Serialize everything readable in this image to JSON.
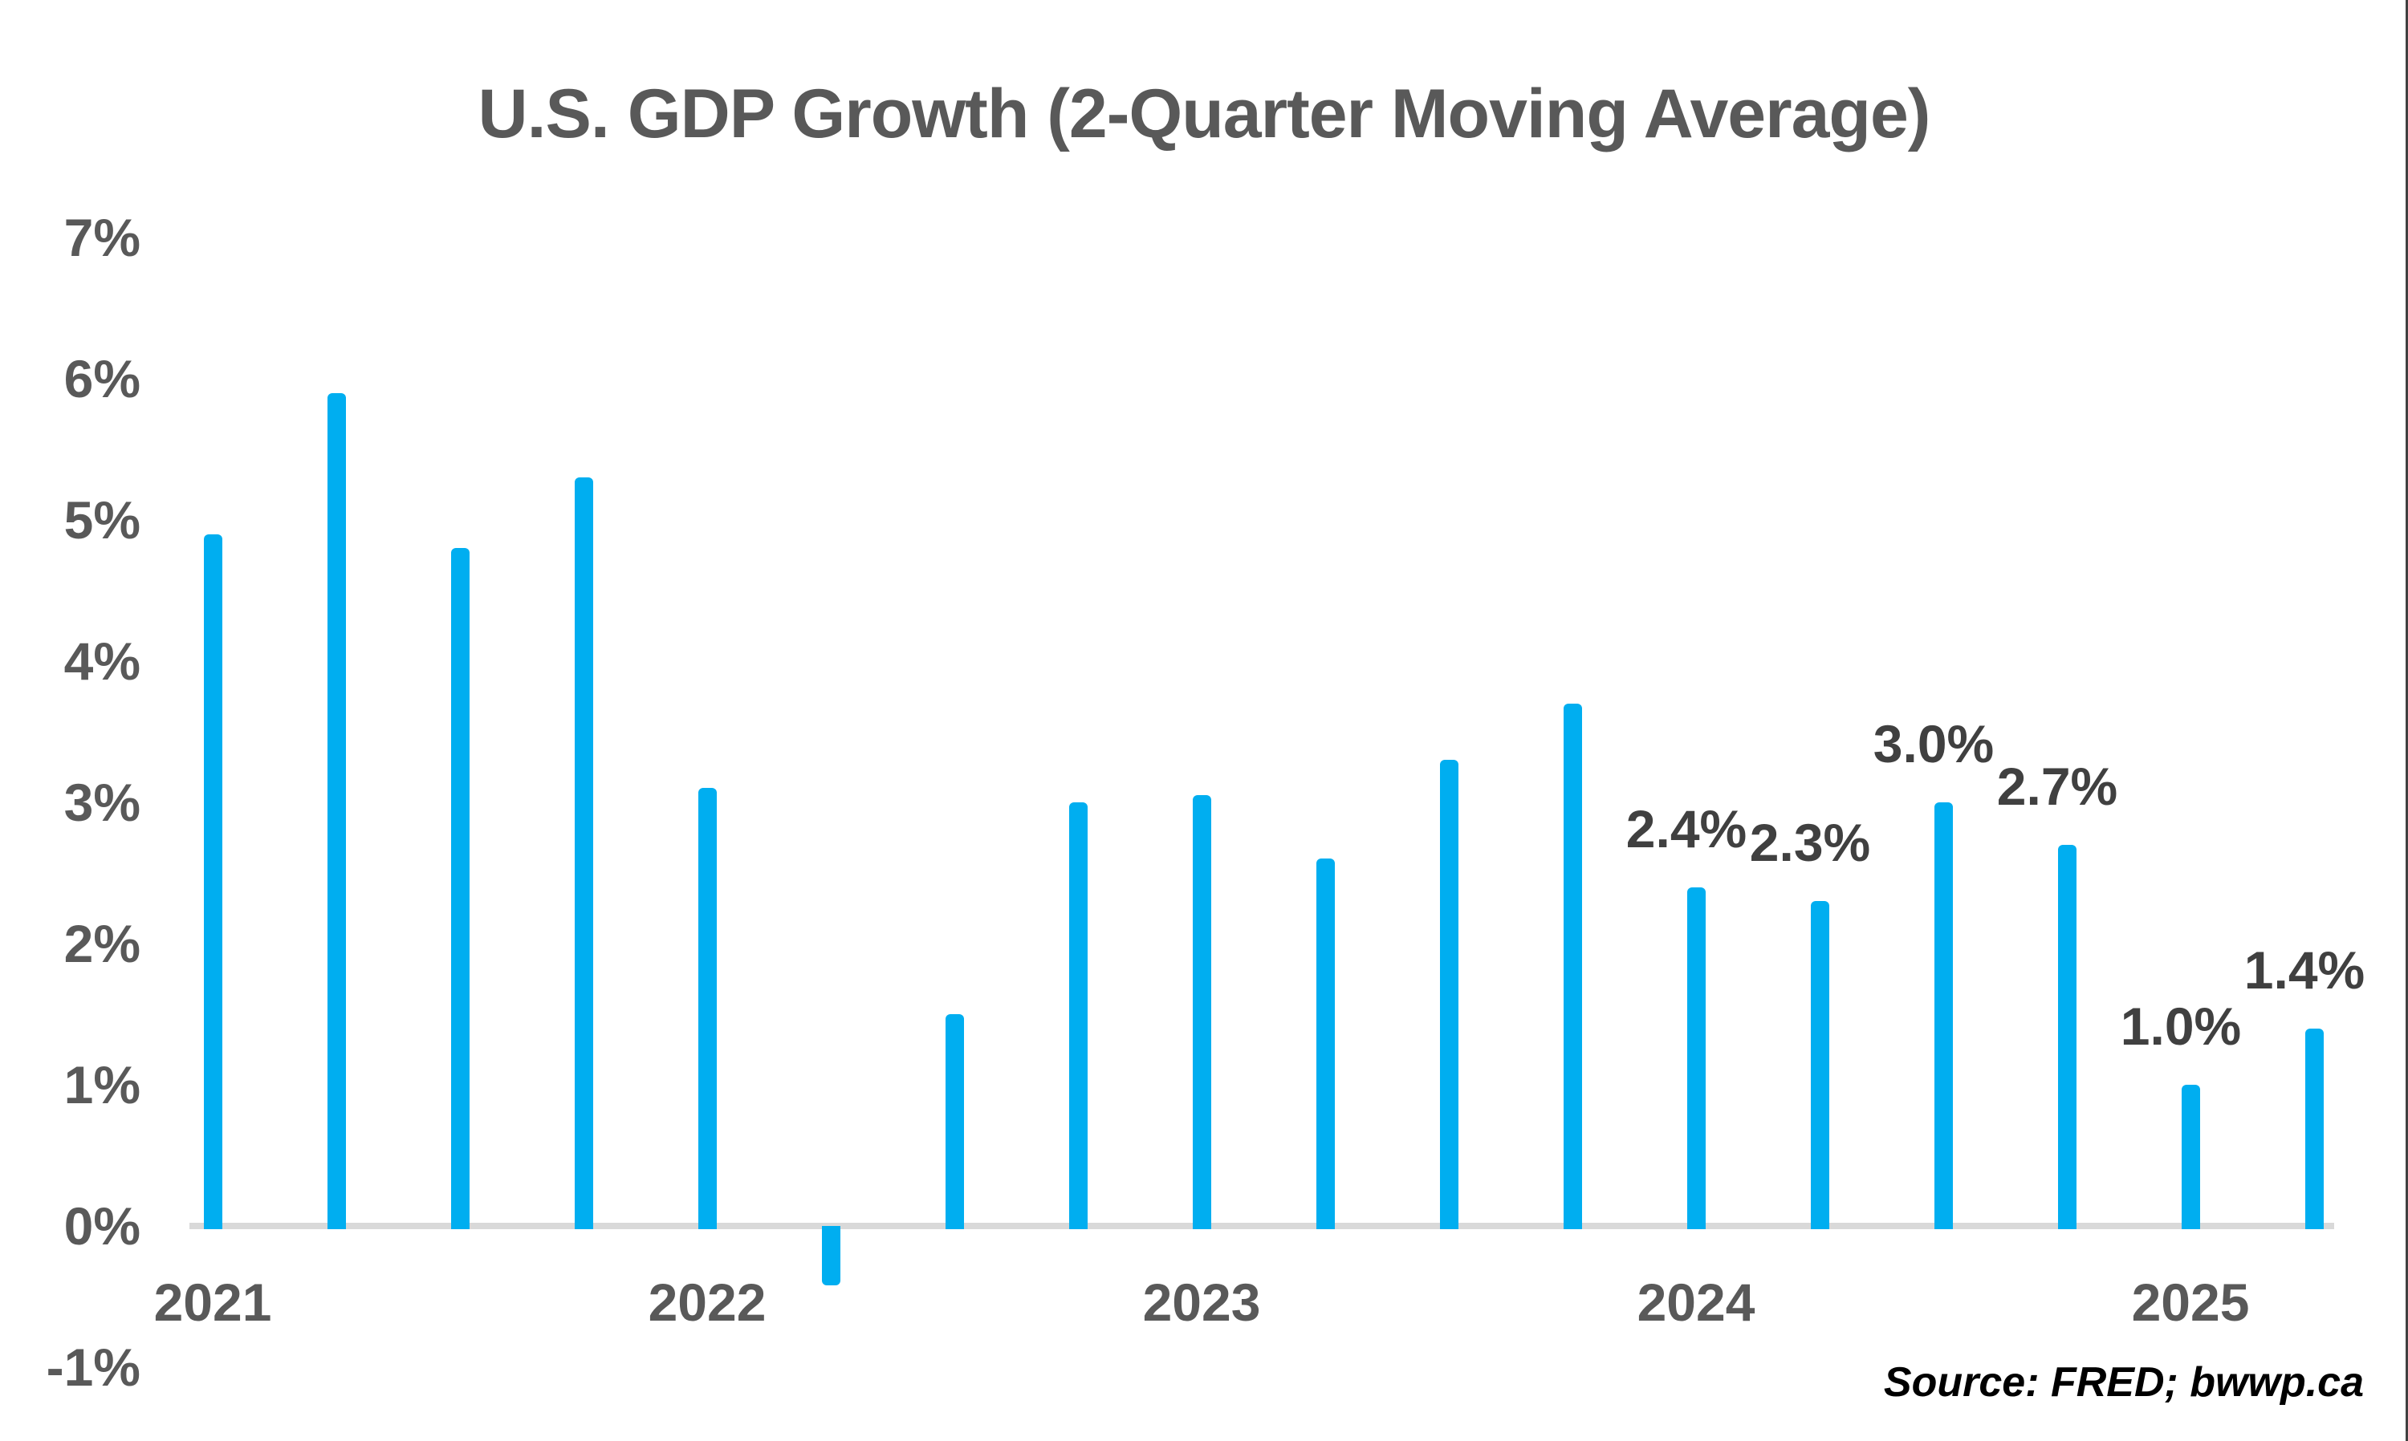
{
  "chart_data": {
    "type": "bar",
    "title": "U.S. GDP Growth (2-Quarter Moving Average)",
    "source": "Source: FRED; bwwp.ca",
    "categories": [
      "2021 Q1",
      "2021 Q2",
      "2021 Q3",
      "2021 Q4",
      "2022 Q1",
      "2022 Q2",
      "2022 Q3",
      "2022 Q4",
      "2023 Q1",
      "2023 Q2",
      "2023 Q3",
      "2023 Q4",
      "2024 Q1",
      "2024 Q2",
      "2024 Q3",
      "2024 Q4",
      "2025 Q1",
      "2025 Q2"
    ],
    "values": [
      4.9,
      5.9,
      4.8,
      5.3,
      3.1,
      -0.4,
      1.5,
      3.0,
      3.05,
      2.6,
      3.3,
      3.7,
      2.4,
      2.3,
      3.0,
      2.7,
      1.0,
      1.4
    ],
    "bar_labels": [
      null,
      null,
      null,
      null,
      null,
      null,
      null,
      null,
      null,
      null,
      null,
      null,
      "2.4%",
      "2.3%",
      "3.0%",
      "2.7%",
      "1.0%",
      "1.4%"
    ],
    "x_tick_labels": [
      "2021",
      "2022",
      "2023",
      "2024",
      "2025"
    ],
    "x_tick_category_indices": [
      0,
      4,
      8,
      12,
      16
    ],
    "y_ticks": [
      {
        "value": 7,
        "label": "7%"
      },
      {
        "value": 6,
        "label": "6%"
      },
      {
        "value": 5,
        "label": "5%"
      },
      {
        "value": 4,
        "label": "4%"
      },
      {
        "value": 3,
        "label": "3%"
      },
      {
        "value": 2,
        "label": "2%"
      },
      {
        "value": 1,
        "label": "1%"
      },
      {
        "value": 0,
        "label": "0%"
      },
      {
        "value": -1,
        "label": "-1%"
      }
    ],
    "ylim": [
      -1,
      7
    ],
    "gridlines": "none (zero baseline only)",
    "legend": "none",
    "colors": {
      "bar": "#00AEF0",
      "title_text": "#595959",
      "axis_label_text": "#595959",
      "data_label_text": "#404040",
      "zero_baseline": "#D9D9D9",
      "source_text": "#000000",
      "background": "#FFFFFF",
      "right_edge_line": "#404040"
    }
  }
}
